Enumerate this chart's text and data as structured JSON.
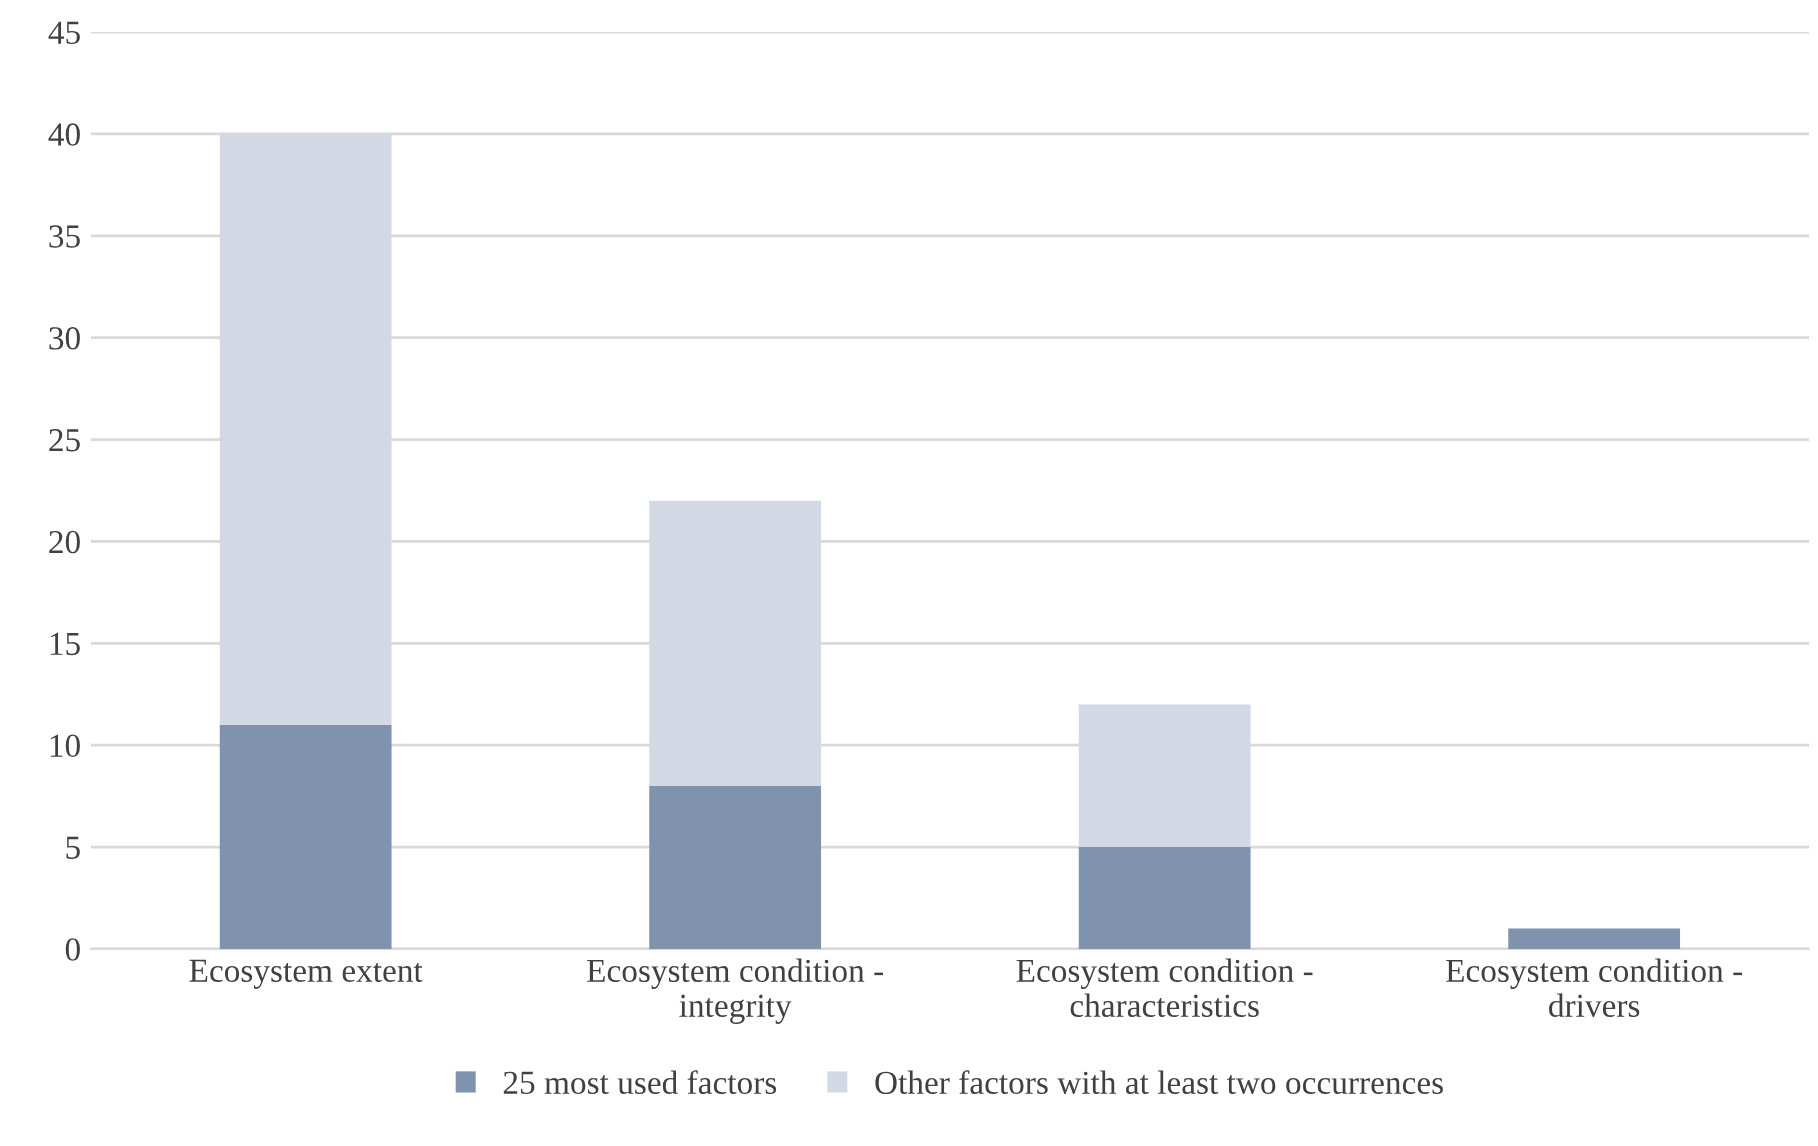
{
  "chart_data": {
    "type": "bar",
    "stacked": true,
    "categories": [
      "Ecosystem extent",
      "Ecosystem condition -\nintegrity",
      "Ecosystem condition -\ncharacteristics",
      "Ecosystem condition -\ndrivers"
    ],
    "series": [
      {
        "name": "25 most used factors",
        "color": "#8093ae",
        "values": [
          11,
          8,
          5,
          1
        ]
      },
      {
        "name": "Other factors with at least two occurrences",
        "color": "#d3d9e4",
        "values": [
          29,
          14,
          7,
          0
        ]
      }
    ],
    "ylim": [
      0,
      45
    ],
    "yticks": [
      0,
      5,
      10,
      15,
      20,
      25,
      30,
      35,
      40,
      45
    ],
    "grid": "y",
    "legend": "bottom"
  }
}
